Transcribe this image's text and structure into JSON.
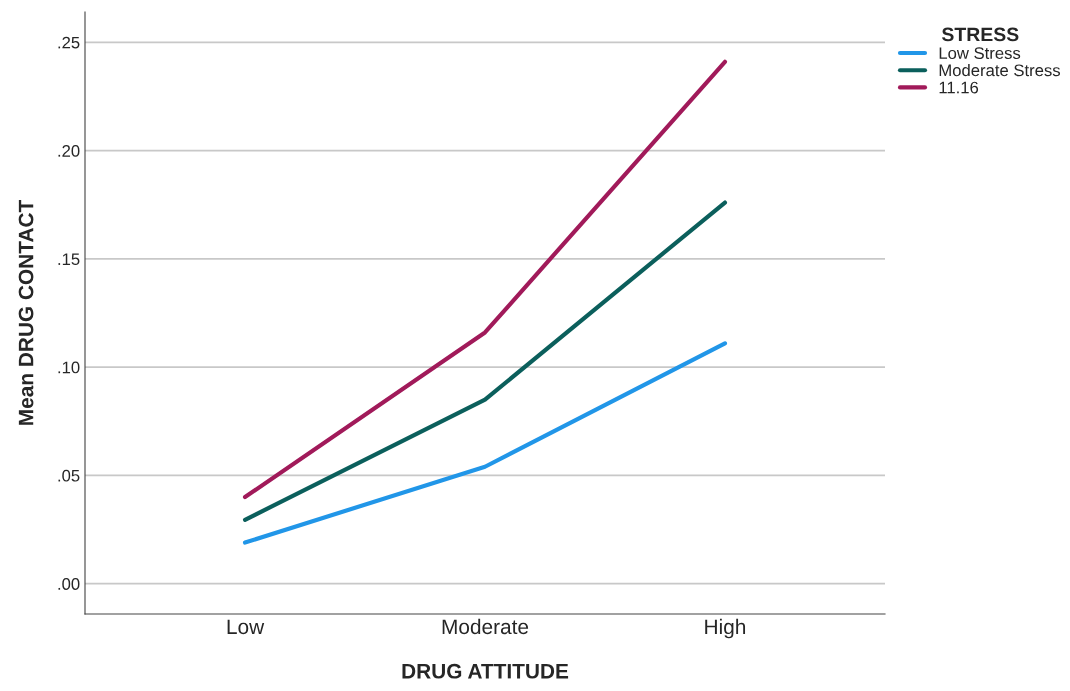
{
  "chart_data": {
    "type": "line",
    "xlabel": "DRUG ATTITUDE",
    "ylabel": "Mean DRUG CONTACT",
    "legend_title": "STRESS",
    "categories": [
      "Low",
      "Moderate",
      "High"
    ],
    "series": [
      {
        "name": "Low Stress",
        "color": "#2196e8",
        "values": [
          0.019,
          0.054,
          0.111
        ]
      },
      {
        "name": "Moderate Stress",
        "color": "#0b5f5c",
        "values": [
          0.0295,
          0.085,
          0.176
        ]
      },
      {
        "name": "11.16",
        "color": "#a11a5a",
        "values": [
          0.04,
          0.116,
          0.241
        ]
      }
    ],
    "ylim": [
      -0.014,
      0.264
    ],
    "yticks": [
      {
        "value": 0,
        "label": ".00"
      },
      {
        "value": 0.05,
        "label": ".05"
      },
      {
        "value": 0.1,
        "label": ".10"
      },
      {
        "value": 0.15,
        "label": ".15"
      },
      {
        "value": 0.2,
        "label": ".20"
      },
      {
        "value": 0.25,
        "label": ".25"
      }
    ],
    "grid": "y",
    "legend": "top right",
    "marker": "none",
    "line_style": "solid"
  }
}
